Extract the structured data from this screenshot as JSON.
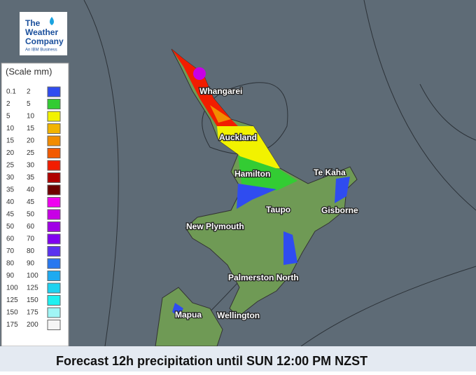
{
  "logo": {
    "line1": "The",
    "line2": "Weather",
    "line3": "Company",
    "tagline": "An IBM Business"
  },
  "legend": {
    "title": "(Scale mm)",
    "rows": [
      {
        "from": 0.1,
        "to": 2,
        "color": "#2f4cf0"
      },
      {
        "from": 2,
        "to": 5,
        "color": "#33cc33"
      },
      {
        "from": 5,
        "to": 10,
        "color": "#f2f200"
      },
      {
        "from": 10,
        "to": 15,
        "color": "#f2b400"
      },
      {
        "from": 15,
        "to": 20,
        "color": "#f28c00"
      },
      {
        "from": 20,
        "to": 25,
        "color": "#f25a00"
      },
      {
        "from": 25,
        "to": 30,
        "color": "#f21d00"
      },
      {
        "from": 30,
        "to": 35,
        "color": "#b00000"
      },
      {
        "from": 35,
        "to": 40,
        "color": "#6e0000"
      },
      {
        "from": 40,
        "to": 45,
        "color": "#f000f0"
      },
      {
        "from": 45,
        "to": 50,
        "color": "#c800e6"
      },
      {
        "from": 50,
        "to": 60,
        "color": "#a000e6"
      },
      {
        "from": 60,
        "to": 70,
        "color": "#8000f0"
      },
      {
        "from": 70,
        "to": 80,
        "color": "#5a32f0"
      },
      {
        "from": 80,
        "to": 90,
        "color": "#2878f0"
      },
      {
        "from": 90,
        "to": 100,
        "color": "#1eaaf0"
      },
      {
        "from": 100,
        "to": 125,
        "color": "#1ed2f0"
      },
      {
        "from": 125,
        "to": 150,
        "color": "#1ef0f0"
      },
      {
        "from": 150,
        "to": 175,
        "color": "#a0f5f5"
      },
      {
        "from": 175,
        "to": 200,
        "color": "#f5f5f5"
      }
    ]
  },
  "places": [
    {
      "name": "Whangarei"
    },
    {
      "name": "Auckland"
    },
    {
      "name": "Hamilton"
    },
    {
      "name": "Te Kaha"
    },
    {
      "name": "Taupo"
    },
    {
      "name": "Gisborne"
    },
    {
      "name": "New Plymouth"
    },
    {
      "name": "Palmerston North"
    },
    {
      "name": "Mapua"
    },
    {
      "name": "Wellington"
    }
  ],
  "caption": "Forecast 12h precipitation until SUN 12:00 PM NZST"
}
